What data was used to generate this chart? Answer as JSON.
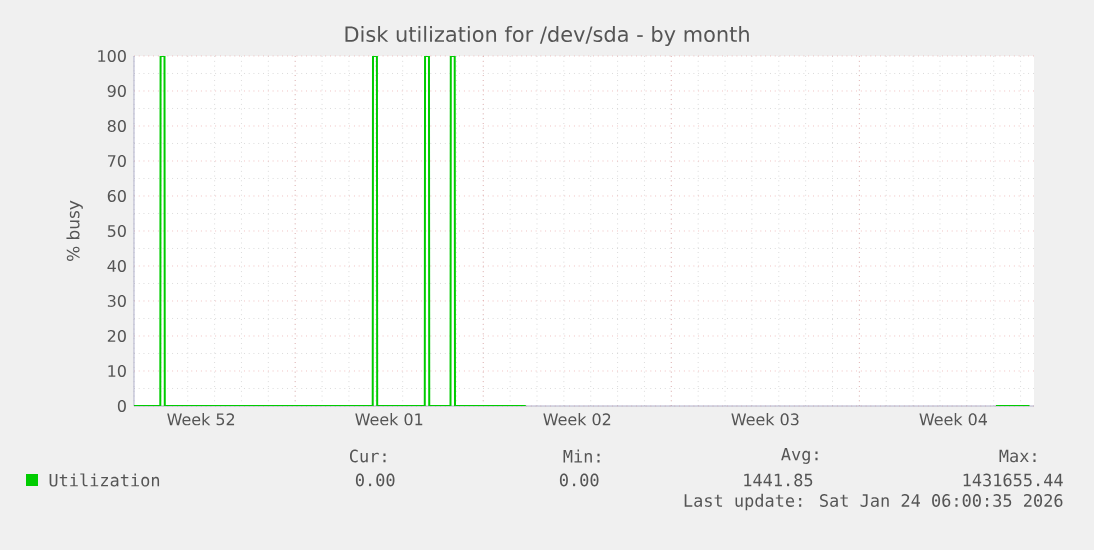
{
  "chart_data": {
    "type": "line",
    "title": "Disk utilization for /dev/sda - by month",
    "ylabel": "% busy",
    "xlim": [
      "2025-12-23T00:00",
      "2026-01-25T12:00"
    ],
    "xticks": [
      {
        "value": "2025-12-25T12:00",
        "label": "Week 52"
      },
      {
        "value": "2025-12-29T00:00",
        "label": null
      },
      {
        "value": "2026-01-01T12:00",
        "label": "Week 01"
      },
      {
        "value": "2026-01-05T00:00",
        "label": null
      },
      {
        "value": "2026-01-08T12:00",
        "label": "Week 02"
      },
      {
        "value": "2026-01-12T00:00",
        "label": null
      },
      {
        "value": "2026-01-15T12:00",
        "label": "Week 03"
      },
      {
        "value": "2026-01-19T00:00",
        "label": null
      },
      {
        "value": "2026-01-22T12:00",
        "label": "Week 04"
      }
    ],
    "ylim": [
      0,
      100
    ],
    "yticks": [
      0,
      10,
      20,
      30,
      40,
      50,
      60,
      70,
      80,
      90,
      100
    ],
    "grid": true,
    "legend": "bottom",
    "series": [
      {
        "name": "Utilization",
        "color": "#00cc00",
        "x": [
          "2025-12-23T00:00",
          "2025-12-23T23:30",
          "2025-12-23T23:45",
          "2025-12-24T03:15",
          "2025-12-24T03:30",
          "2025-12-31T21:15",
          "2025-12-31T21:30",
          "2026-01-01T01:00",
          "2026-01-01T01:15",
          "2026-01-02T19:45",
          "2026-01-02T20:00",
          "2026-01-02T23:30",
          "2026-01-02T23:45",
          "2026-01-03T18:45",
          "2026-01-03T19:00",
          "2026-01-03T22:30",
          "2026-01-03T22:45",
          "2026-01-06T14:00",
          "2026-01-15T00:00",
          "2026-01-24T02:00",
          "2026-01-25T08:00"
        ],
        "values": [
          0,
          0,
          100,
          100,
          0,
          0,
          100,
          100,
          0,
          0,
          100,
          100,
          0,
          0,
          100,
          100,
          0,
          0,
          null,
          0,
          0
        ]
      }
    ],
    "annotations": [
      "Cur:",
      "Min:",
      "Avg:",
      "Max:",
      "0.00",
      "0.00",
      "1441.85",
      "1431655.44",
      "Last update: Sat Jan 24 06:00:35 2026"
    ]
  }
}
